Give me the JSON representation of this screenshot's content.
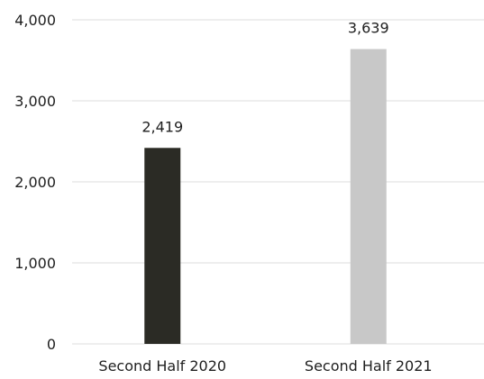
{
  "chart_data": {
    "type": "bar",
    "categories": [
      "Second Half 2020",
      "Second Half 2021"
    ],
    "values": [
      2419,
      3639
    ],
    "data_labels": [
      "2,419",
      "3,639"
    ],
    "bar_colors": [
      "#2b2b25",
      "#c8c8c8"
    ],
    "yticks": [
      0,
      1000,
      2000,
      3000,
      4000
    ],
    "ytick_labels": [
      "0",
      "1,000",
      "2,000",
      "3,000",
      "4,000"
    ],
    "ylim": [
      0,
      4000
    ],
    "grid": true,
    "legend": "none"
  }
}
